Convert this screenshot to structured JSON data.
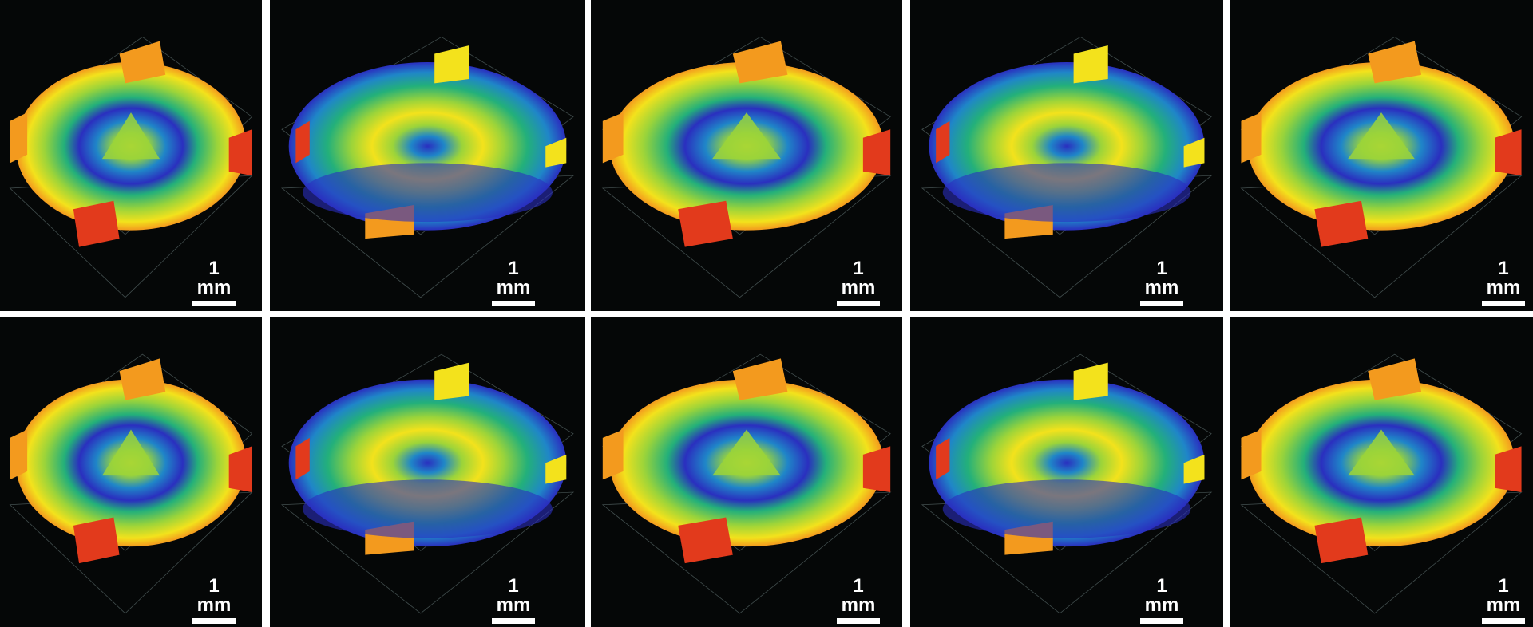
{
  "figure": {
    "rows": 2,
    "columns": 5,
    "panels": [
      {
        "type": "cone",
        "scale_label": "1 mm"
      },
      {
        "type": "ring",
        "scale_label": "1 mm"
      },
      {
        "type": "cone",
        "scale_label": "1 mm"
      },
      {
        "type": "ring",
        "scale_label": "1 mm"
      },
      {
        "type": "cone",
        "scale_label": "1 mm"
      },
      {
        "type": "cone",
        "scale_label": "1 mm"
      },
      {
        "type": "ring",
        "scale_label": "1 mm"
      },
      {
        "type": "cone",
        "scale_label": "1 mm"
      },
      {
        "type": "ring",
        "scale_label": "1 mm"
      },
      {
        "type": "cone",
        "scale_label": "1 mm"
      }
    ],
    "colors": {
      "background": "#050707",
      "separator": "#ffffff",
      "colormap": [
        "#2a2fbf",
        "#1f86c8",
        "#23b07a",
        "#9bd43a",
        "#f3e21c",
        "#f39a1e",
        "#e23a1c"
      ]
    }
  }
}
